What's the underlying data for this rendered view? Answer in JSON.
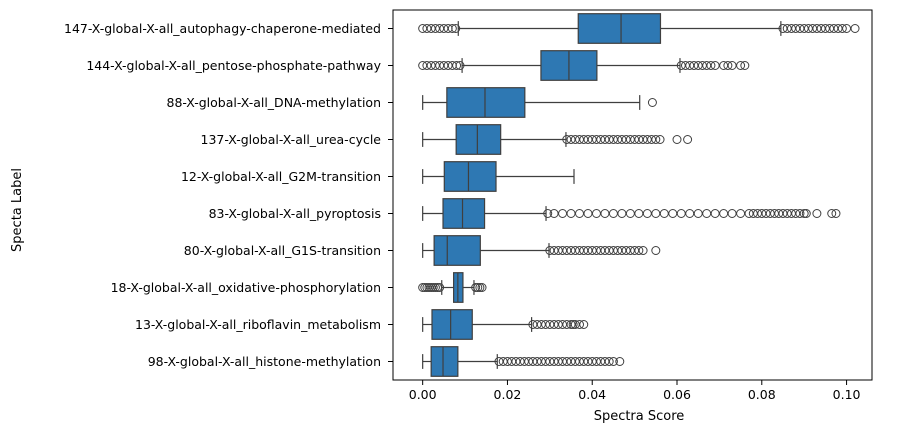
{
  "chart_data": {
    "type": "boxplot",
    "orientation": "horizontal",
    "xlabel": "Spectra Score",
    "ylabel": "Specta Label",
    "xlim": [
      -0.007,
      0.106
    ],
    "xticks": [
      0.0,
      0.02,
      0.04,
      0.06,
      0.08,
      0.1
    ],
    "xtick_labels": [
      "0.00",
      "0.02",
      "0.04",
      "0.06",
      "0.08",
      "0.10"
    ],
    "grid": false,
    "legend": "none",
    "box_color": "#2e78b3",
    "line_color": "#3f3f3f",
    "categories": [
      "147-X-global-X-all_autophagy-chaperone-mediated",
      "144-X-global-X-all_pentose-phosphate-pathway",
      "88-X-global-X-all_DNA-methylation",
      "137-X-global-X-all_urea-cycle",
      "12-X-global-X-all_G2M-transition",
      "83-X-global-X-all_pyroptosis",
      "80-X-global-X-all_G1S-transition",
      "18-X-global-X-all_oxidative-phosphorylation",
      "13-X-global-X-all_riboflavin_metabolism",
      "98-X-global-X-all_histone-methylation"
    ],
    "boxes": [
      {
        "whisker_low": 0.0084,
        "q1": 0.0367,
        "median": 0.0468,
        "q3": 0.0561,
        "whisker_high": 0.0845,
        "outliers_low": [
          0.0,
          0.001,
          0.002,
          0.003,
          0.004,
          0.005,
          0.006,
          0.007,
          0.0078
        ],
        "outliers_high": [
          0.085,
          0.086,
          0.087,
          0.088,
          0.089,
          0.09,
          0.091,
          0.092,
          0.093,
          0.094,
          0.095,
          0.096,
          0.097,
          0.098,
          0.099,
          0.1,
          0.102
        ]
      },
      {
        "whisker_low": 0.0093,
        "q1": 0.0279,
        "median": 0.0345,
        "q3": 0.0411,
        "whisker_high": 0.0607,
        "outliers_low": [
          0.0,
          0.001,
          0.002,
          0.003,
          0.004,
          0.005,
          0.006,
          0.007,
          0.008,
          0.0088
        ],
        "outliers_high": [
          0.061,
          0.062,
          0.063,
          0.064,
          0.065,
          0.066,
          0.067,
          0.068,
          0.069,
          0.071,
          0.072,
          0.073,
          0.075,
          0.076
        ]
      },
      {
        "whisker_low": 0.0,
        "q1": 0.0057,
        "median": 0.0147,
        "q3": 0.0241,
        "whisker_high": 0.0512,
        "outliers_low": [],
        "outliers_high": [
          0.0542
        ]
      },
      {
        "whisker_low": 0.0,
        "q1": 0.0079,
        "median": 0.0129,
        "q3": 0.0184,
        "whisker_high": 0.0338,
        "outliers_low": [],
        "outliers_high": [
          0.034,
          0.035,
          0.036,
          0.037,
          0.038,
          0.039,
          0.04,
          0.041,
          0.042,
          0.043,
          0.044,
          0.045,
          0.046,
          0.047,
          0.048,
          0.049,
          0.05,
          0.051,
          0.052,
          0.053,
          0.054,
          0.055,
          0.056,
          0.06,
          0.0625
        ]
      },
      {
        "whisker_low": 0.0,
        "q1": 0.0051,
        "median": 0.0108,
        "q3": 0.0173,
        "whisker_high": 0.0357,
        "outliers_low": [],
        "outliers_high": []
      },
      {
        "whisker_low": 0.0,
        "q1": 0.0048,
        "median": 0.0094,
        "q3": 0.0146,
        "whisker_high": 0.0291,
        "outliers_low": [],
        "outliers_high": [
          0.0295,
          0.031,
          0.033,
          0.035,
          0.037,
          0.039,
          0.041,
          0.043,
          0.045,
          0.047,
          0.049,
          0.051,
          0.053,
          0.055,
          0.057,
          0.059,
          0.061,
          0.063,
          0.065,
          0.067,
          0.069,
          0.071,
          0.073,
          0.075,
          0.077,
          0.078,
          0.079,
          0.08,
          0.081,
          0.082,
          0.083,
          0.084,
          0.085,
          0.086,
          0.087,
          0.088,
          0.089,
          0.09,
          0.0905,
          0.093,
          0.0965,
          0.0975
        ]
      },
      {
        "whisker_low": 0.0,
        "q1": 0.0027,
        "median": 0.0058,
        "q3": 0.0136,
        "whisker_high": 0.0298,
        "outliers_low": [],
        "outliers_high": [
          0.03,
          0.031,
          0.032,
          0.033,
          0.034,
          0.035,
          0.036,
          0.037,
          0.038,
          0.039,
          0.04,
          0.041,
          0.042,
          0.043,
          0.044,
          0.045,
          0.046,
          0.047,
          0.048,
          0.049,
          0.05,
          0.051,
          0.052,
          0.055
        ]
      },
      {
        "whisker_low": 0.0045,
        "q1": 0.0073,
        "median": 0.0083,
        "q3": 0.0095,
        "whisker_high": 0.0121,
        "outliers_low": [
          0.0,
          0.0005,
          0.001,
          0.0015,
          0.002,
          0.0025,
          0.003,
          0.0035,
          0.004
        ],
        "outliers_high": [
          0.0125,
          0.013,
          0.0135,
          0.014
        ]
      },
      {
        "whisker_low": 0.0,
        "q1": 0.0022,
        "median": 0.0066,
        "q3": 0.0117,
        "whisker_high": 0.0257,
        "outliers_low": [],
        "outliers_high": [
          0.026,
          0.027,
          0.028,
          0.029,
          0.03,
          0.031,
          0.032,
          0.033,
          0.034,
          0.035,
          0.0355,
          0.036,
          0.037,
          0.038
        ]
      },
      {
        "whisker_low": 0.0,
        "q1": 0.002,
        "median": 0.0048,
        "q3": 0.0083,
        "whisker_high": 0.0176,
        "outliers_low": [],
        "outliers_high": [
          0.018,
          0.019,
          0.02,
          0.021,
          0.022,
          0.023,
          0.024,
          0.025,
          0.026,
          0.027,
          0.028,
          0.029,
          0.03,
          0.031,
          0.032,
          0.033,
          0.034,
          0.035,
          0.036,
          0.037,
          0.038,
          0.039,
          0.04,
          0.041,
          0.042,
          0.043,
          0.044,
          0.045,
          0.0465
        ]
      }
    ]
  }
}
